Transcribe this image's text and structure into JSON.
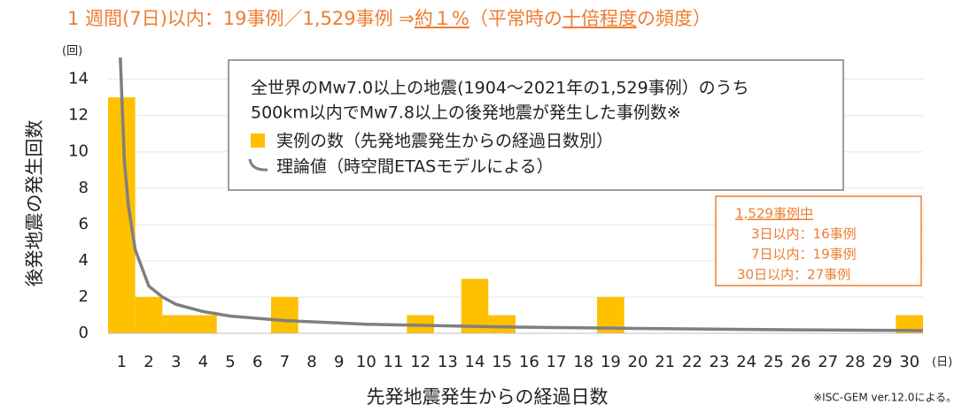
{
  "chart_data": {
    "type": "bar",
    "title": [
      "1 週間(7日)以内：19事例／1,529事例 ⇒",
      "約１%",
      "（平常時の",
      "十倍程度",
      "の頻度）"
    ],
    "title_underline": [
      false,
      true,
      false,
      true,
      false
    ],
    "ylabel": "後発地震の発生回数",
    "xlabel": "先発地震発生からの経過日数",
    "y_unit": "(回)",
    "x_unit": "(日)",
    "legend_title": [
      "全世界のMw7.0以上の地震(1904～2021年の1,529事例）のうち",
      "500km以内でMw7.8以上の後発地震が発生した事例数※"
    ],
    "annotation": [
      "1,529事例中",
      "3日以内：16事例",
      "7日以内：19事例",
      "30日以内：27事例"
    ],
    "footnote": "※ISC-GEM ver.12.0による。",
    "x": [
      1,
      2,
      3,
      4,
      5,
      6,
      7,
      8,
      9,
      10,
      11,
      12,
      13,
      14,
      15,
      16,
      17,
      18,
      19,
      20,
      21,
      22,
      23,
      24,
      25,
      26,
      27,
      28,
      29,
      30
    ],
    "xlim": [
      0.5,
      30.5
    ],
    "ylim": [
      0,
      15.2
    ],
    "yticks": [
      0,
      2,
      4,
      6,
      8,
      10,
      12,
      14
    ],
    "grid": true,
    "series": [
      {
        "name": "実例の数（先発地震発生からの経過日数別）",
        "type": "bar",
        "color": "#ffc000",
        "values": [
          13,
          2,
          1,
          1,
          0,
          0,
          2,
          0,
          0,
          0,
          0,
          1,
          0,
          3,
          1,
          0,
          0,
          0,
          2,
          0,
          0,
          0,
          0,
          0,
          0,
          0,
          0,
          0,
          0,
          1
        ]
      },
      {
        "name": "理論値（時空間ETASモデルによる）",
        "type": "line",
        "color": "#7f7f7f",
        "x": [
          0.95,
          1.1,
          1.25,
          1.5,
          2,
          2.5,
          3,
          4,
          5,
          7,
          10,
          15,
          20,
          25,
          30.5
        ],
        "values": [
          15.2,
          9.5,
          7,
          4.6,
          2.6,
          2.0,
          1.6,
          1.2,
          0.95,
          0.7,
          0.5,
          0.35,
          0.27,
          0.2,
          0.15
        ]
      }
    ]
  }
}
